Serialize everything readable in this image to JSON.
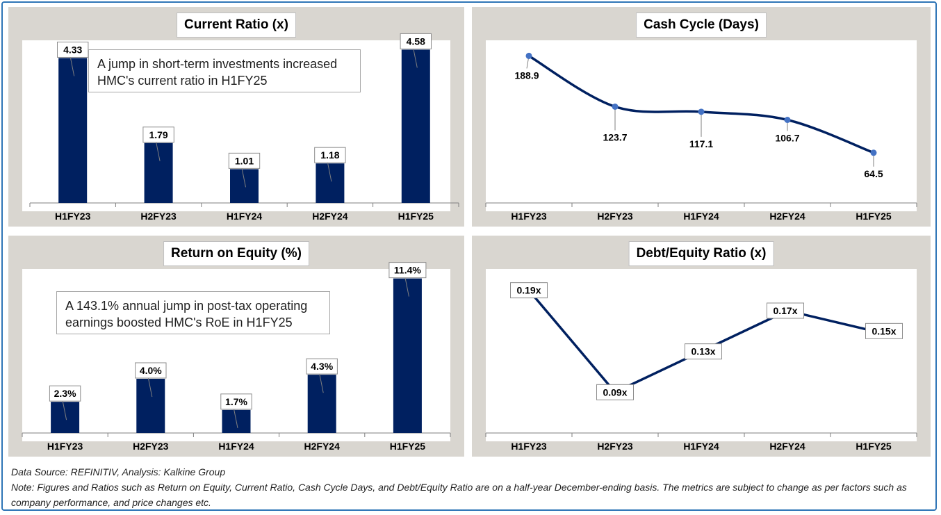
{
  "footer": {
    "source": "Data Source: REFINITIV, Analysis: Kalkine Group",
    "note": "Note: Figures and Ratios such as Return on Equity, Current Ratio, Cash Cycle Days, and Debt/Equity Ratio  are on a half-year December-ending basis. The metrics are subject to change as per factors such as company performance, and price changes etc."
  },
  "chart_data": [
    {
      "id": "current_ratio",
      "type": "bar",
      "title": "Current Ratio (x)",
      "categories": [
        "H1FY23",
        "H2FY23",
        "H1FY24",
        "H2FY24",
        "H1FY25"
      ],
      "values": [
        4.33,
        1.79,
        1.01,
        1.18,
        4.58
      ],
      "labels": [
        "4.33",
        "1.79",
        "1.01",
        "1.18",
        "4.58"
      ],
      "ylim": [
        0,
        4.9
      ],
      "color": "#002060",
      "grid": false,
      "annotation": [
        "A jump in short-term investments increased",
        "HMC's current ratio in H1FY25"
      ]
    },
    {
      "id": "cash_cycle",
      "type": "line",
      "title": "Cash Cycle (Days)",
      "categories": [
        "H1FY23",
        "H2FY23",
        "H1FY24",
        "H2FY24",
        "H1FY25"
      ],
      "values": [
        188.9,
        123.7,
        117.1,
        106.7,
        64.5
      ],
      "labels": [
        "188.9",
        "123.7",
        "117.1",
        "106.7",
        "64.5"
      ],
      "ylim": [
        0,
        200
      ],
      "color": "#002060",
      "marker_color": "#4472c4",
      "smooth": true,
      "grid": false
    },
    {
      "id": "roe",
      "type": "bar",
      "title": "Return on Equity (%)",
      "categories": [
        "H1FY23",
        "H2FY23",
        "H1FY24",
        "H2FY24",
        "H1FY25"
      ],
      "values": [
        2.3,
        4.0,
        1.7,
        4.3,
        11.4
      ],
      "labels": [
        "2.3%",
        "4.0%",
        "1.7%",
        "4.3%",
        "11.4%"
      ],
      "ylim": [
        0,
        12.1
      ],
      "color": "#002060",
      "grid": false,
      "annotation": [
        "A 143.1% annual jump in post-tax operating",
        "earnings boosted HMC's RoE in H1FY25"
      ]
    },
    {
      "id": "debt_equity",
      "type": "line",
      "title": "Debt/Equity Ratio (x)",
      "categories": [
        "H1FY23",
        "H2FY23",
        "H1FY24",
        "H2FY24",
        "H1FY25"
      ],
      "values": [
        0.19,
        0.09,
        0.13,
        0.17,
        0.15
      ],
      "labels": [
        "0.19x",
        "0.09x",
        "0.13x",
        "0.17x",
        "0.15x"
      ],
      "ylim": [
        0.05,
        0.2
      ],
      "color": "#002060",
      "smooth": false,
      "grid": false
    }
  ]
}
